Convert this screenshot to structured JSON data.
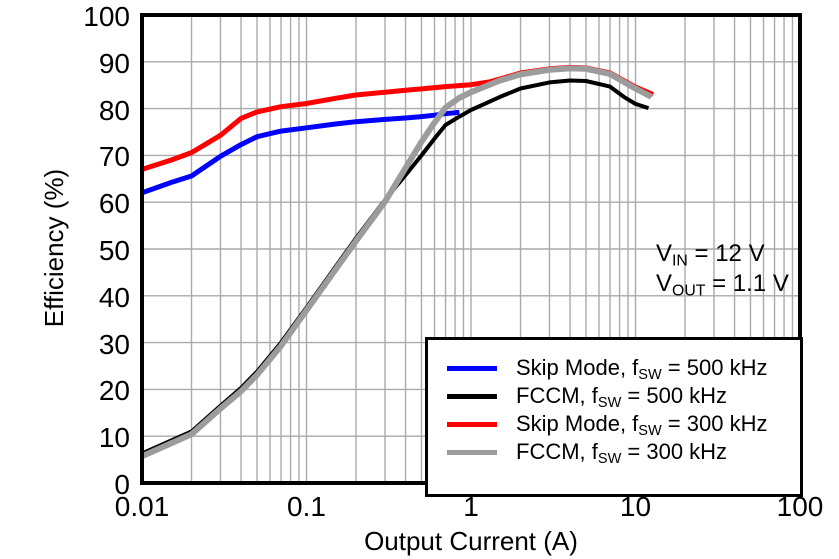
{
  "chart_data": {
    "type": "line",
    "title": "",
    "xlabel": "Output Current (A)",
    "ylabel": "Efficiency (%)",
    "x_scale": "log",
    "xlim": [
      0.01,
      100
    ],
    "ylim": [
      0,
      100
    ],
    "x_ticks": [
      "0.01",
      "0.1",
      "1",
      "10",
      "100"
    ],
    "y_ticks": [
      100,
      90,
      80,
      70,
      60,
      50,
      40,
      30,
      20,
      10,
      0
    ],
    "grid": "major-y, major+minor-x (log), light gray",
    "legend_position": "bottom-right, boxed",
    "colors": {
      "axis": "#000000",
      "gridline": "#aaaaaa",
      "background": "#ffffff"
    },
    "annotation_lines": [
      {
        "prefix": "V",
        "sub": "IN",
        "suffix": " = 12 V"
      },
      {
        "prefix": "V",
        "sub": "OUT",
        "suffix": " = 1.1 V"
      }
    ],
    "series": [
      {
        "name": "Skip Mode, fSW = 500 kHz",
        "label_parts": {
          "prefix": "Skip Mode, f",
          "sub": "SW",
          "suffix": " = 500 kHz"
        },
        "color": "#0000ff",
        "stroke_width": 5,
        "points": [
          [
            0.01,
            62.0
          ],
          [
            0.015,
            64.2
          ],
          [
            0.02,
            65.6
          ],
          [
            0.03,
            69.8
          ],
          [
            0.04,
            72.3
          ],
          [
            0.05,
            74.0
          ],
          [
            0.07,
            75.2
          ],
          [
            0.1,
            75.9
          ],
          [
            0.15,
            76.7
          ],
          [
            0.2,
            77.2
          ],
          [
            0.3,
            77.7
          ],
          [
            0.4,
            78.0
          ],
          [
            0.5,
            78.3
          ],
          [
            0.6,
            78.6
          ],
          [
            0.7,
            78.9
          ],
          [
            0.85,
            79.2
          ]
        ]
      },
      {
        "name": "FCCM, fSW = 500 kHz",
        "label_parts": {
          "prefix": "FCCM, f",
          "sub": "SW",
          "suffix": " = 500 kHz"
        },
        "color": "#000000",
        "stroke_width": 4,
        "points": [
          [
            0.01,
            6.3
          ],
          [
            0.02,
            11.0
          ],
          [
            0.03,
            16.5
          ],
          [
            0.04,
            20.3
          ],
          [
            0.05,
            23.8
          ],
          [
            0.07,
            30.0
          ],
          [
            0.1,
            37.5
          ],
          [
            0.15,
            46.2
          ],
          [
            0.2,
            52.3
          ],
          [
            0.3,
            60.5
          ],
          [
            0.4,
            65.8
          ],
          [
            0.5,
            70.0
          ],
          [
            0.6,
            73.6
          ],
          [
            0.7,
            76.5
          ],
          [
            0.85,
            78.3
          ],
          [
            1,
            79.7
          ],
          [
            1.5,
            82.5
          ],
          [
            2,
            84.3
          ],
          [
            3,
            85.6
          ],
          [
            4,
            86.0
          ],
          [
            5,
            85.9
          ],
          [
            7,
            84.7
          ],
          [
            8.5,
            82.5
          ],
          [
            10,
            81.0
          ],
          [
            12,
            80.1
          ]
        ]
      },
      {
        "name": "Skip Mode, fSW = 300 kHz",
        "label_parts": {
          "prefix": "Skip Mode, f",
          "sub": "SW",
          "suffix": " = 300 kHz"
        },
        "color": "#ff0000",
        "stroke_width": 5,
        "points": [
          [
            0.01,
            67.0
          ],
          [
            0.015,
            69.0
          ],
          [
            0.02,
            70.6
          ],
          [
            0.03,
            74.3
          ],
          [
            0.04,
            77.9
          ],
          [
            0.05,
            79.3
          ],
          [
            0.07,
            80.4
          ],
          [
            0.1,
            81.1
          ],
          [
            0.15,
            82.2
          ],
          [
            0.2,
            82.9
          ],
          [
            0.3,
            83.5
          ],
          [
            0.4,
            83.9
          ],
          [
            0.5,
            84.2
          ],
          [
            0.7,
            84.7
          ],
          [
            1,
            85.1
          ],
          [
            1.3,
            85.7
          ],
          [
            1.6,
            86.6
          ],
          [
            2,
            87.6
          ],
          [
            3,
            88.5
          ],
          [
            4,
            88.8
          ],
          [
            5,
            88.7
          ],
          [
            7,
            87.6
          ],
          [
            10,
            84.6
          ],
          [
            12.8,
            83.0
          ]
        ]
      },
      {
        "name": "FCCM, fSW = 300 kHz",
        "label_parts": {
          "prefix": "FCCM, f",
          "sub": "SW",
          "suffix": " = 300 kHz"
        },
        "color": "#9c9c9c",
        "stroke_width": 6,
        "points": [
          [
            0.01,
            5.7
          ],
          [
            0.02,
            10.4
          ],
          [
            0.03,
            15.9
          ],
          [
            0.04,
            19.6
          ],
          [
            0.05,
            23.1
          ],
          [
            0.07,
            29.3
          ],
          [
            0.1,
            36.9
          ],
          [
            0.15,
            45.6
          ],
          [
            0.2,
            51.7
          ],
          [
            0.3,
            60.1
          ],
          [
            0.4,
            67.3
          ],
          [
            0.5,
            72.9
          ],
          [
            0.6,
            77.0
          ],
          [
            0.7,
            80.2
          ],
          [
            0.85,
            82.3
          ],
          [
            1,
            83.5
          ],
          [
            1.5,
            86.0
          ],
          [
            2,
            87.3
          ],
          [
            3,
            88.3
          ],
          [
            4,
            88.6
          ],
          [
            5,
            88.5
          ],
          [
            7,
            87.4
          ],
          [
            10,
            84.3
          ],
          [
            12.5,
            82.5
          ]
        ]
      }
    ]
  }
}
